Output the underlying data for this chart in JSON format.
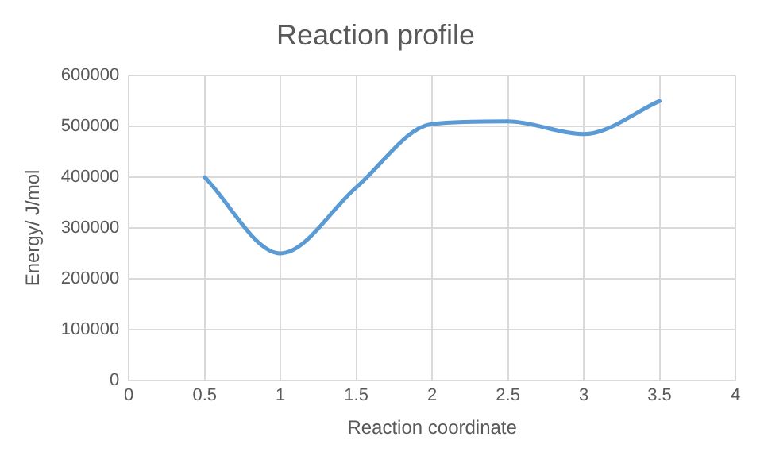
{
  "chart_data": {
    "type": "line",
    "title": "Reaction profile",
    "xlabel": "Reaction coordinate",
    "ylabel": "Energy/ J/mol",
    "x": [
      0.5,
      1,
      1.5,
      2,
      2.5,
      3,
      3.5
    ],
    "series": [
      {
        "color": "#5b9bd5",
        "values": [
          400000,
          250000,
          380000,
          505000,
          510000,
          485000,
          550000
        ]
      }
    ],
    "xlim": [
      0,
      4
    ],
    "xticks": [
      0,
      0.5,
      1,
      1.5,
      2,
      2.5,
      3,
      3.5,
      4
    ],
    "ylim": [
      0,
      600000
    ],
    "yticks": [
      0,
      100000,
      200000,
      300000,
      400000,
      500000,
      600000
    ],
    "grid": true,
    "legend": false,
    "marker": "none",
    "line_style": "solid"
  }
}
